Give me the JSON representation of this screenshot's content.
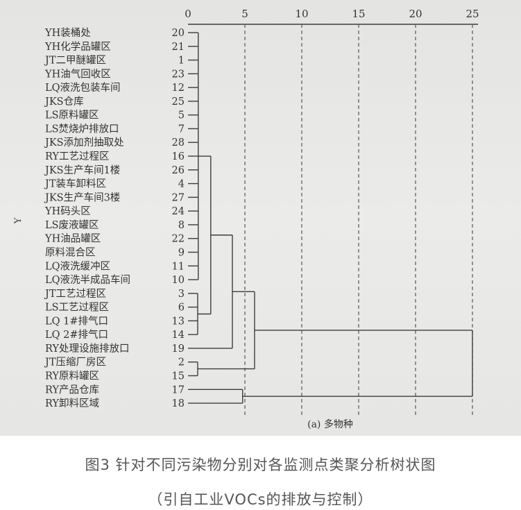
{
  "chart_data": {
    "type": "dendrogram",
    "subtitle": "(a) 多物种",
    "ylabel": "Y",
    "xlim": [
      0,
      25
    ],
    "x_ticks": [
      0,
      5,
      10,
      15,
      20,
      25
    ],
    "grid": "dashed vertical at ticks",
    "leaves": [
      {
        "id": "20",
        "label": "YH装桶处"
      },
      {
        "id": "21",
        "label": "YH化学品罐区"
      },
      {
        "id": "1",
        "label": "JT二甲醚罐区"
      },
      {
        "id": "23",
        "label": "YH油气回收区"
      },
      {
        "id": "12",
        "label": "LQ液洗包装车间"
      },
      {
        "id": "25",
        "label": "JKS仓库"
      },
      {
        "id": "5",
        "label": "LS原料罐区"
      },
      {
        "id": "7",
        "label": "LS焚烧炉排放口"
      },
      {
        "id": "28",
        "label": "JKS添加剂抽取处"
      },
      {
        "id": "16",
        "label": "RY工艺过程区"
      },
      {
        "id": "26",
        "label": "JKS生产车间1楼"
      },
      {
        "id": "4",
        "label": "JT装车卸料区"
      },
      {
        "id": "27",
        "label": "JKS生产车间3楼"
      },
      {
        "id": "24",
        "label": "YH码头区"
      },
      {
        "id": "8",
        "label": "LS废液罐区"
      },
      {
        "id": "22",
        "label": "YH油品罐区"
      },
      {
        "id": "9",
        "label": "原料混合区"
      },
      {
        "id": "11",
        "label": "LQ液洗缓冲区"
      },
      {
        "id": "10",
        "label": "LQ液洗半成品车间"
      },
      {
        "id": "3",
        "label": "JT工艺过程区"
      },
      {
        "id": "6",
        "label": "LS工艺过程区"
      },
      {
        "id": "13",
        "label": "LQ 1#排气口"
      },
      {
        "id": "14",
        "label": "LQ 2#排气口"
      },
      {
        "id": "19",
        "label": "RY处理设施排放口"
      },
      {
        "id": "2",
        "label": "JT压缩厂房区"
      },
      {
        "id": "15",
        "label": "RY原料罐区"
      },
      {
        "id": "17",
        "label": "RY产品仓库"
      },
      {
        "id": "18",
        "label": "RY卸料区域"
      }
    ],
    "tree": {
      "h": 25,
      "c": [
        {
          "h": 5.85,
          "c": [
            {
              "h": 3.9,
              "c": [
                {
                  "h": 2.0,
                  "c": [
                    {
                      "h": 0.9,
                      "c": [
                        "20",
                        "21",
                        "1",
                        "23",
                        "12",
                        "25",
                        "5",
                        "7",
                        "28",
                        "16",
                        "26",
                        "4",
                        "27",
                        "24",
                        "8",
                        "22",
                        "9",
                        "11",
                        "10"
                      ]
                    },
                    {
                      "h": 0.85,
                      "c": [
                        "3",
                        "6",
                        "13",
                        "14"
                      ]
                    }
                  ]
                },
                "19"
              ]
            },
            {
              "h": 0.85,
              "c": [
                "2",
                "15"
              ]
            }
          ]
        },
        {
          "h": 4.8,
          "c": [
            "17",
            "18"
          ]
        }
      ]
    }
  },
  "caption": {
    "line1": "图3 针对不同污染物分别对各监测点类聚分析树状图",
    "line2": "（引自工业VOCs的排放与控制）"
  }
}
